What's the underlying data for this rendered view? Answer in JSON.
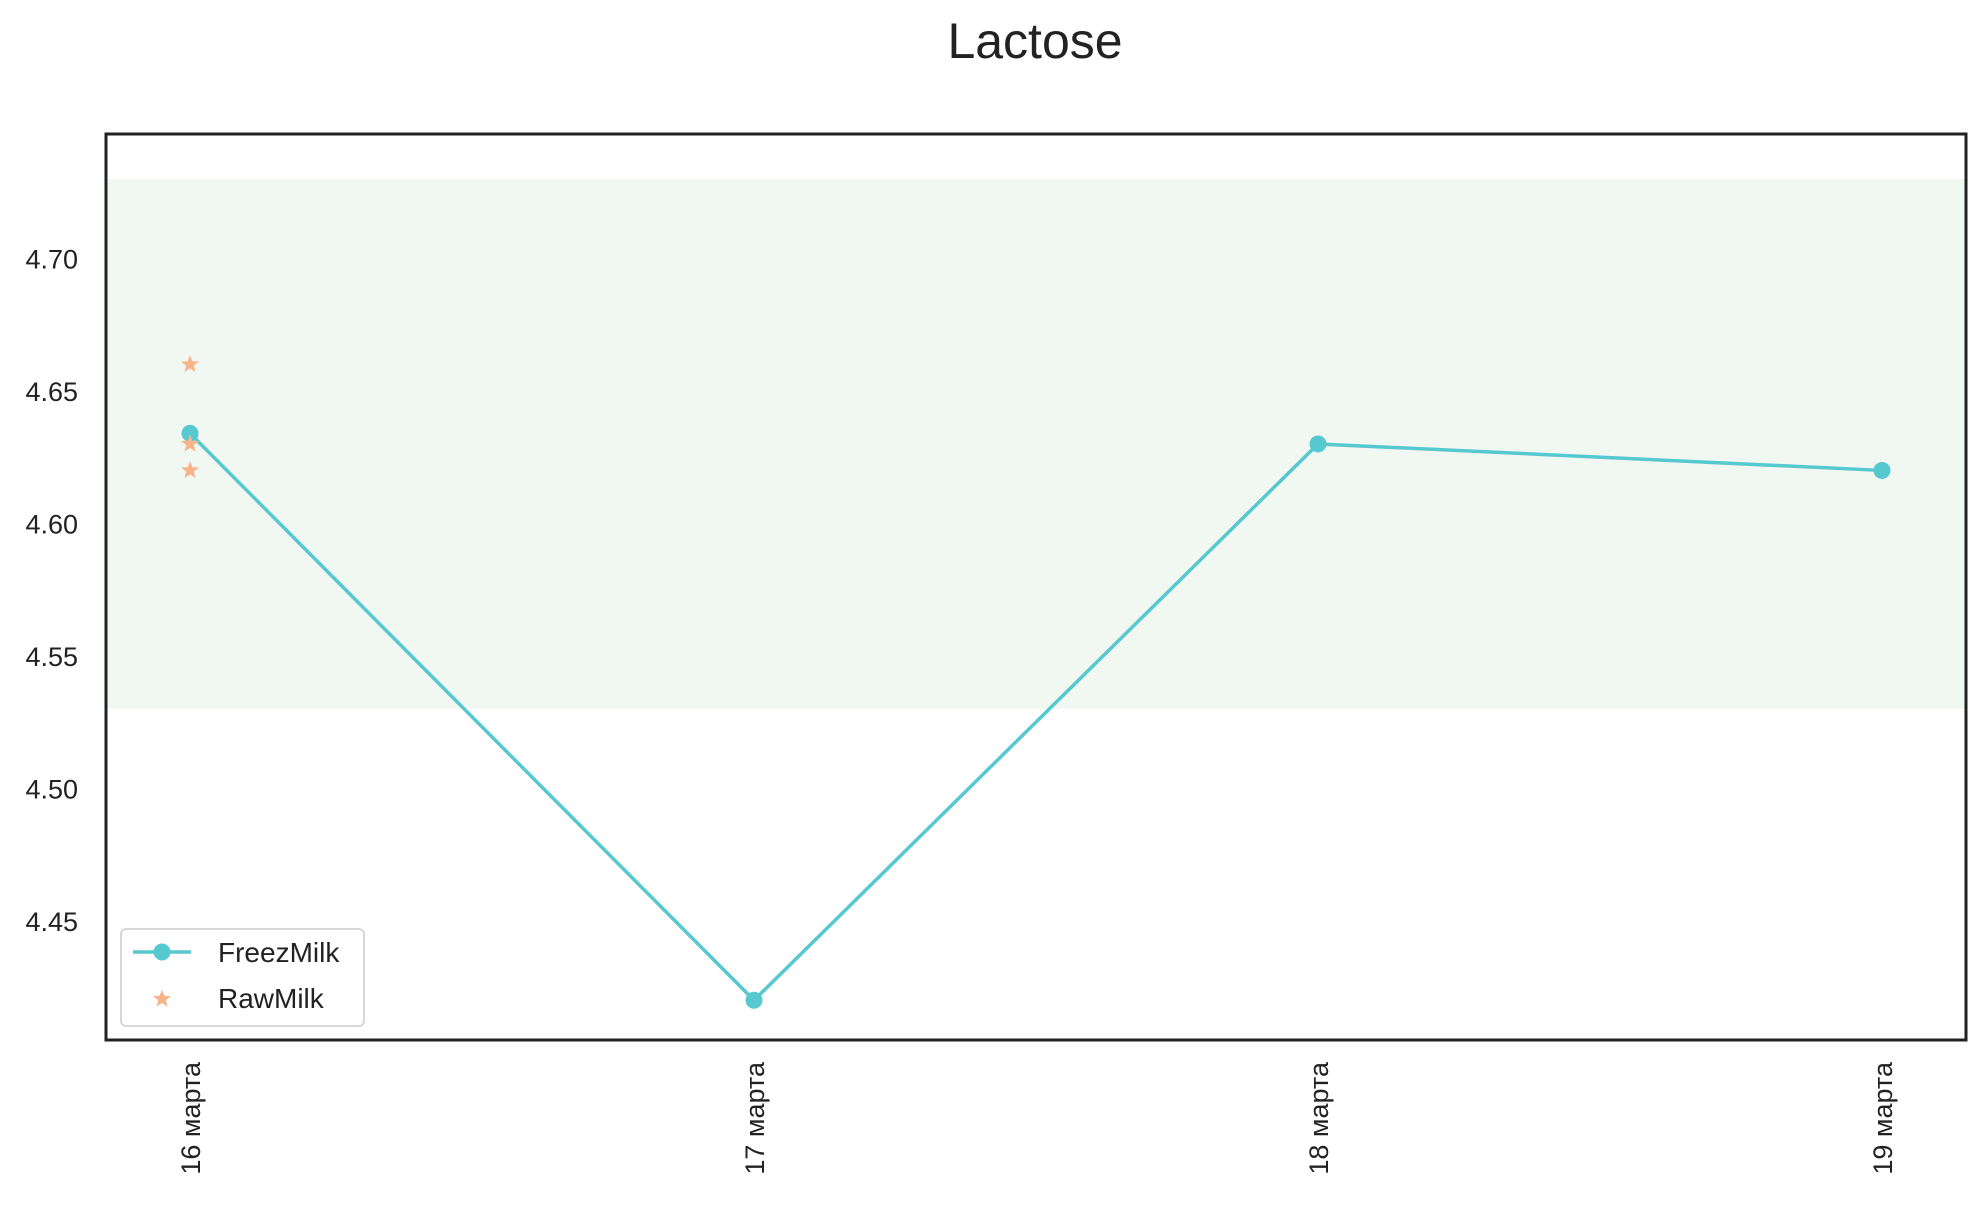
{
  "chart_data": {
    "type": "line",
    "title": "Lactose",
    "xlabel": "",
    "ylabel": "",
    "categories": [
      "16 марта",
      "17 марта",
      "18 марта",
      "19 марта"
    ],
    "ylim": [
      4.405,
      4.747
    ],
    "yticks": [
      "4.45",
      "4.50",
      "4.55",
      "4.60",
      "4.65",
      "4.70"
    ],
    "grid": false,
    "legend_position": "lower-left",
    "reference_band": {
      "ymin": 4.53,
      "ymax": 4.73,
      "color": "#f1f8f1"
    },
    "series": [
      {
        "name": "FreezMilk",
        "kind": "line-marker",
        "color": "#56c8d0",
        "points": [
          {
            "x": "16 марта",
            "y": 4.634
          },
          {
            "x": "17 марта",
            "y": 4.42
          },
          {
            "x": "18 марта",
            "y": 4.63
          },
          {
            "x": "19 марта",
            "y": 4.62
          }
        ]
      },
      {
        "name": "RawMilk",
        "kind": "scatter-star",
        "color": "#f8b58c",
        "points": [
          {
            "x": "16 марта",
            "y": 4.66
          },
          {
            "x": "16 марта",
            "y": 4.63
          },
          {
            "x": "16 марта",
            "y": 4.62
          }
        ]
      }
    ]
  }
}
